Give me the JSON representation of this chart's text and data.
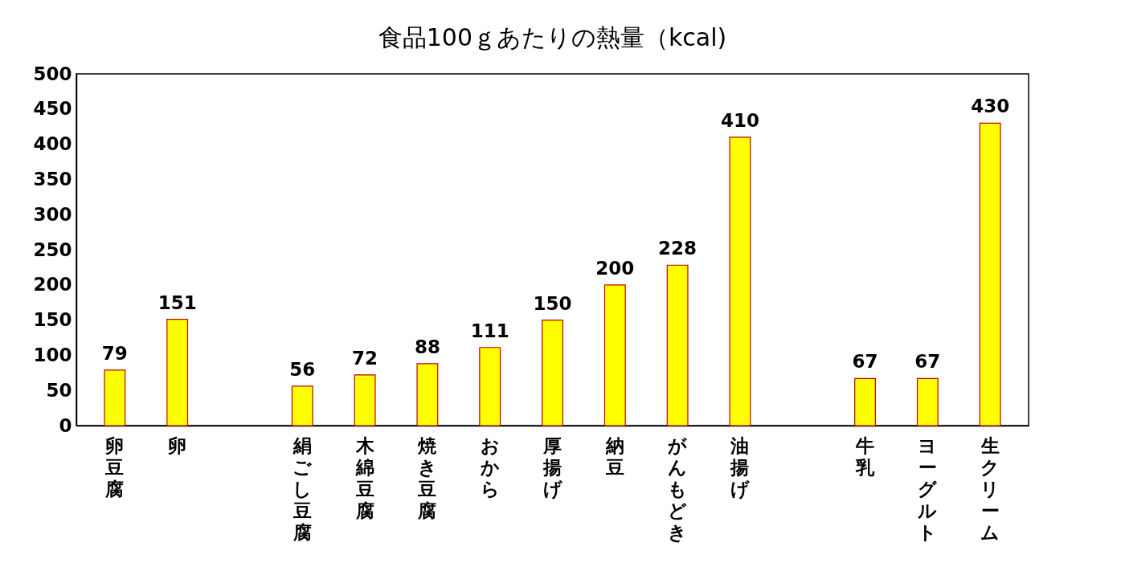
{
  "chart_data": {
    "type": "bar",
    "title": "食品100ｇあたりの熱量（kcal)",
    "categories": [
      "卵豆腐",
      "卵",
      null,
      "絹ごし豆腐",
      "木綿豆腐",
      "焼き豆腐",
      "おから",
      "厚揚げ",
      "納豆",
      "がんもどき",
      "油揚げ",
      null,
      "牛乳",
      "ヨーグルト",
      "生クリーム"
    ],
    "values": [
      79,
      151,
      null,
      56,
      72,
      88,
      111,
      150,
      200,
      228,
      410,
      null,
      67,
      67,
      430
    ],
    "color": "#ffff00",
    "data_labels": true,
    "ylim": [
      0,
      500
    ],
    "yticks": [
      0,
      50,
      100,
      150,
      200,
      250,
      300,
      350,
      400,
      450,
      500
    ],
    "grid": false
  }
}
